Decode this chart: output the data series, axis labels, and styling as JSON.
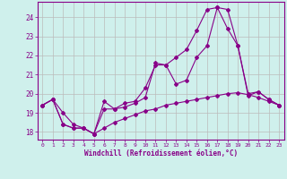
{
  "bg_color": "#cff0ec",
  "line_color": "#880088",
  "grid_color": "#bbbbbb",
  "title": "Windchill (Refroidissement éolien,°C)",
  "xlim": [
    -0.5,
    23.5
  ],
  "ylim": [
    17.6,
    24.8
  ],
  "yticks": [
    18,
    19,
    20,
    21,
    22,
    23,
    24
  ],
  "xticks": [
    0,
    1,
    2,
    3,
    4,
    5,
    6,
    7,
    8,
    9,
    10,
    11,
    12,
    13,
    14,
    15,
    16,
    17,
    18,
    19,
    20,
    21,
    22,
    23
  ],
  "line1_x": [
    0,
    1,
    2,
    3,
    4,
    5,
    6,
    7,
    8,
    9,
    10,
    11,
    12,
    13,
    14,
    15,
    16,
    17,
    18,
    19,
    20,
    21,
    22,
    23
  ],
  "line1_y": [
    19.4,
    19.7,
    19.0,
    18.4,
    18.2,
    17.9,
    18.2,
    18.5,
    18.7,
    18.9,
    19.1,
    19.2,
    19.4,
    19.5,
    19.6,
    19.7,
    19.8,
    19.9,
    20.0,
    20.05,
    19.95,
    19.8,
    19.6,
    19.4
  ],
  "line2_x": [
    0,
    1,
    2,
    3,
    4,
    5,
    6,
    7,
    8,
    9,
    10,
    11,
    12,
    13,
    14,
    15,
    16,
    17,
    18,
    19,
    20,
    21,
    22,
    23
  ],
  "line2_y": [
    19.4,
    19.7,
    18.4,
    18.2,
    18.2,
    17.9,
    19.6,
    19.2,
    19.3,
    19.5,
    19.8,
    21.6,
    21.5,
    20.5,
    20.7,
    21.9,
    22.5,
    24.5,
    24.4,
    22.5,
    19.9,
    20.1,
    19.7,
    19.4
  ],
  "line3_x": [
    0,
    1,
    2,
    3,
    4,
    5,
    6,
    7,
    8,
    9,
    10,
    11,
    12,
    13,
    14,
    15,
    16,
    17,
    18,
    19,
    20,
    21,
    22,
    23
  ],
  "line3_y": [
    19.4,
    19.7,
    18.4,
    18.2,
    18.2,
    17.9,
    19.2,
    19.2,
    19.5,
    19.6,
    20.3,
    21.5,
    21.5,
    21.9,
    22.3,
    23.3,
    24.4,
    24.5,
    23.4,
    22.5,
    20.0,
    20.1,
    19.7,
    19.4
  ]
}
